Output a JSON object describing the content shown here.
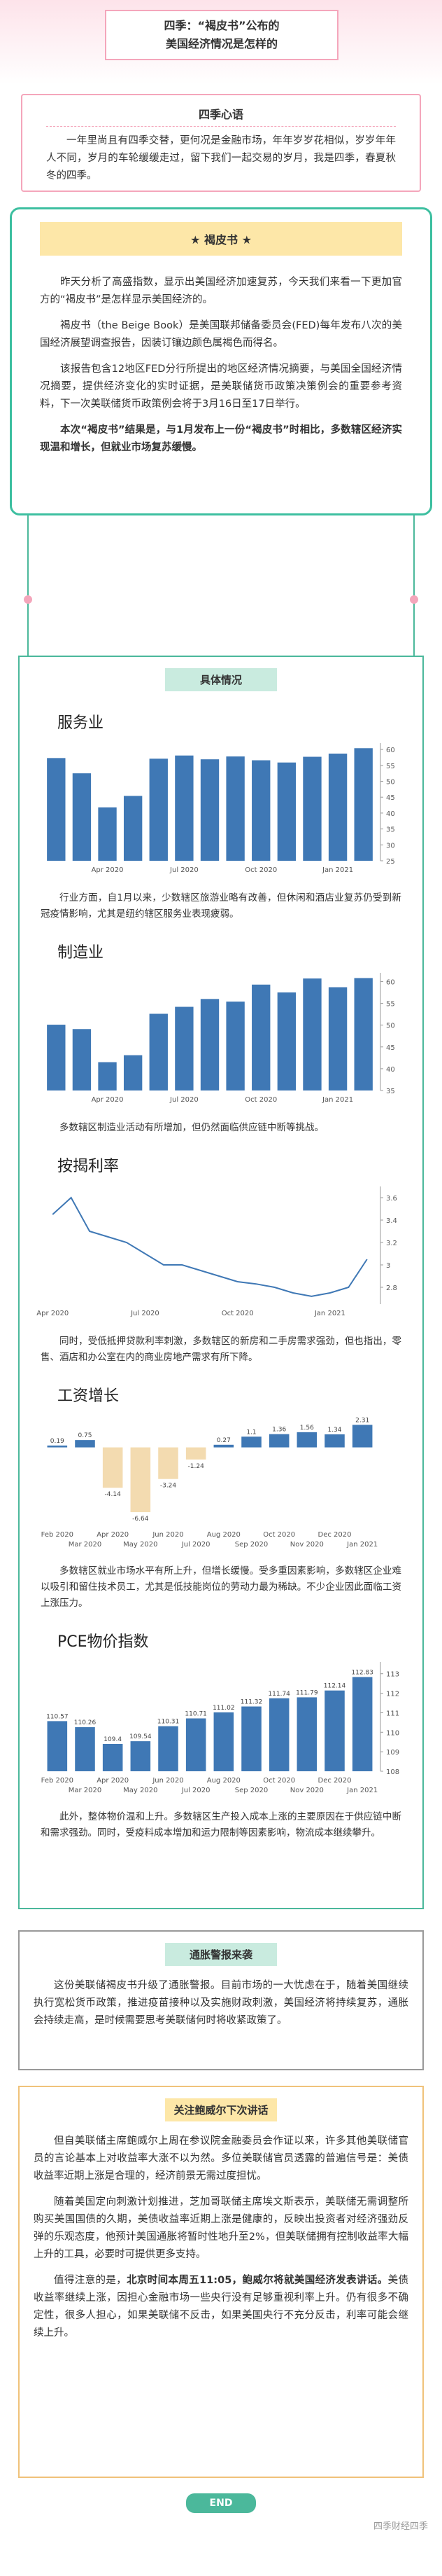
{
  "header": {
    "title_lines": [
      "四季：“褐皮书”公布的",
      "美国经济情况是怎样的"
    ]
  },
  "intro": {
    "heading": "四季心语",
    "text": "一年里尚且有四季交替，更何况是金融市场，年年岁岁花相似，岁岁年年人不同，岁月的车轮缓缓走过，留下我们一起交易的岁月，我是四季，春夏秋冬的四季。"
  },
  "beige": {
    "heading": "★ 褐皮书 ★",
    "paragraphs": [
      "昨天分析了高盛指数，显示出美国经济加速复苏，今天我们来看一下更加官方的“褐皮书”是怎样显示美国经济的。",
      "褐皮书（the Beige Book）是美国联邦储备委员会(FED)每年发布八次的美国经济展望调查报告，因装订镶边颜色属褐色而得名。",
      "该报告包含12地区FED分行所提出的地区经济情况摘要，与美国全国经济情况摘要，提供经济变化的实时证据，是美联储货币政策决策例会的重要参考资料，下一次美联储货币政策例会将于3月16日至17日举行。"
    ],
    "conclusion": "本次“褐皮书”结果是，与1月发布上一份“褐皮书”时相比，多数辖区经济实现温和增长，但就业市场复苏缓慢。"
  },
  "details": {
    "heading": "具体情况",
    "charts": [
      {
        "chart_data": {
          "type": "bar",
          "title": "服务业",
          "categories": [
            null,
            null,
            "Apr 2020",
            null,
            null,
            "Jul 2020",
            null,
            null,
            "Oct 2020",
            null,
            null,
            "Jan 2021",
            null
          ],
          "values": [
            57.3,
            52.5,
            41.8,
            45.4,
            57.1,
            58.1,
            56.9,
            57.8,
            56.6,
            55.9,
            57.7,
            58.7,
            60.4
          ],
          "color": "#3f78b5",
          "ylim": [
            25,
            62
          ],
          "yticks": [
            25,
            30,
            35,
            40,
            45,
            50,
            55,
            60
          ]
        },
        "caption": "行业方面，自1月以来，少数辖区旅游业略有改善，但休闲和酒店业复苏仍受到新冠疫情影响，尤其是纽约辖区服务业表现疲弱。"
      },
      {
        "chart_data": {
          "type": "bar",
          "title": "制造业",
          "categories": [
            null,
            null,
            "Apr 2020",
            null,
            null,
            "Jul 2020",
            null,
            null,
            "Oct 2020",
            null,
            null,
            "Jan 2021",
            null
          ],
          "values": [
            50.1,
            49.1,
            41.5,
            43.1,
            52.6,
            54.2,
            56,
            55.4,
            59.3,
            57.5,
            60.7,
            58.7,
            60.8
          ],
          "color": "#3f78b5",
          "ylim": [
            35,
            62
          ],
          "yticks": [
            35,
            40,
            45,
            50,
            55,
            60
          ]
        },
        "caption": "多数辖区制造业活动有所增加，但仍然面临供应链中断等挑战。"
      },
      {
        "chart_data": {
          "type": "line",
          "title": "按揭利率",
          "categories": [
            "Apr 2020",
            null,
            null,
            null,
            null,
            "Jul 2020",
            null,
            null,
            null,
            null,
            "Oct 2020",
            null,
            null,
            null,
            null,
            "Jan 2021",
            null,
            null
          ],
          "values": [
            3.45,
            3.6,
            3.3,
            3.25,
            3.2,
            3.1,
            3.0,
            3.0,
            2.95,
            2.9,
            2.85,
            2.83,
            2.8,
            2.75,
            2.72,
            2.75,
            2.8,
            3.05
          ],
          "color": "#3f78b5",
          "ylim": [
            2.65,
            3.7
          ],
          "yticks": [
            2.8,
            3,
            3.2,
            3.4,
            3.6
          ]
        },
        "caption": "同时，受低抵押贷款利率刺激，多数辖区的新房和二手房需求强劲，但也指出，零售、酒店和办公室在内的商业房地产需求有所下降。"
      },
      {
        "chart_data": {
          "type": "bar",
          "title": "工资增长",
          "categories": [
            "Feb 2020",
            "Mar 2020",
            "Apr 2020",
            "May 2020",
            "Jun 2020",
            "Jul 2020",
            "Aug 2020",
            "Sep 2020",
            "Oct 2020",
            "Nov 2020",
            "Dec 2020",
            "Jan 2021"
          ],
          "values": [
            0.19,
            0.75,
            -4.14,
            -6.64,
            -3.24,
            -1.24,
            0.27,
            1.1,
            1.36,
            1.56,
            1.34,
            2.31
          ],
          "color": "#3f78b5",
          "negative_color": "#f3dbb0",
          "ylim": [
            -8,
            3.2
          ],
          "data_labels": true,
          "stagger": true
        },
        "caption": "多数辖区就业市场水平有所上升，但增长缓慢。受多重因素影响，多数辖区企业难以吸引和留住技术员工，尤其是低技能岗位的劳动力最为稀缺。不少企业因此面临工资上涨压力。"
      },
      {
        "chart_data": {
          "type": "bar",
          "title": "PCE物价指数",
          "categories": [
            "Feb 2020",
            "Mar 2020",
            "Apr 2020",
            "May 2020",
            "Jun 2020",
            "Jul 2020",
            "Aug 2020",
            "Sep 2020",
            "Oct 2020",
            "Nov 2020",
            "Dec 2020",
            "Jan 2021"
          ],
          "values": [
            110.57,
            110.26,
            109.4,
            109.54,
            110.31,
            110.71,
            111.02,
            111.32,
            111.74,
            111.79,
            112.14,
            112.83
          ],
          "color": "#3f78b5",
          "ylim": [
            108,
            113.6
          ],
          "yticks": [
            108,
            109,
            110,
            111,
            112,
            113
          ],
          "data_labels": true,
          "stagger": true
        },
        "caption": "此外，整体物价温和上升。多数辖区生产投入成本上涨的主要原因在于供应链中断和需求强劲。同时，受疫料成本增加和运力限制等因素影响，物流成本继续攀升。"
      }
    ]
  },
  "inflation": {
    "heading": "通胀警报来袭",
    "text": "这份美联储褐皮书升级了通胀警报。目前市场的一大忧虑在于，随着美国继续执行宽松货币政策，推进疫苗接种以及实施财政刺激，美国经济将持续复苏，通胀会持续走高，是时候需要思考美联储何时将收紧政策了。"
  },
  "powell": {
    "heading": "关注鲍威尔下次讲话",
    "paragraphs": [
      "但自美联储主席鲍威尔上周在参议院金融委员会作证以来，许多其他美联储官员的言论基本上对收益率大涨不以为然。多位美联储官员透露的普遍信号是：美债收益率近期上涨是合理的，经济前景无需过度担忧。",
      "随着美国定向刺激计划推进，芝加哥联储主席埃文斯表示，美联储无需调整所购买美国国债的久期，美债收益率近期上涨是健康的，反映出投资者对经济强劲反弹的乐观态度，他预计美国通胀将暂时性地升至2%，但美联储拥有控制收益率大幅上升的工具，必要时可提供更多支持。"
    ],
    "note": {
      "lead": "值得注意的是，",
      "bold": "北京时间本周五11:05，鲍威尔将就美国经济发表讲话。",
      "rest": "美债收益率继续上涨，因担心金融市场一些央行没有足够重视利率上升。仍有很多不确定性，很多人担心，如果美联储不反击，如果美国央行不充分反击，利率可能会继续上升。"
    }
  },
  "footer": {
    "end": "END",
    "watermark": "四季财经四季"
  }
}
